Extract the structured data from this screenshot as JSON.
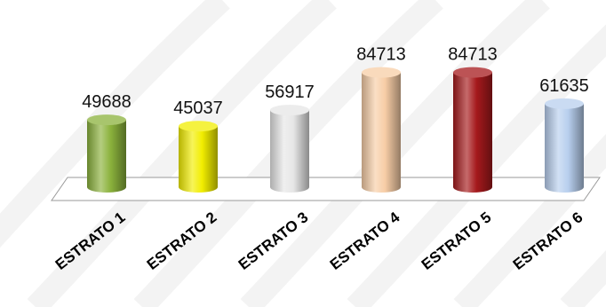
{
  "chart_data": {
    "type": "bar",
    "style": "3d-cylinder",
    "categories": [
      "ESTRATO 1",
      "ESTRATO 2",
      "ESTRATO 3",
      "ESTRATO 4",
      "ESTRATO 5",
      "ESTRATO 6"
    ],
    "values": [
      49688,
      45037,
      56917,
      84713,
      84713,
      61635
    ],
    "colors": [
      "#8bb23c",
      "#f2ee00",
      "#e6e6e6",
      "#f7cda6",
      "#a5191c",
      "#b8cfee"
    ],
    "ylim": [
      0,
      110000
    ],
    "grid": false,
    "legend": "none"
  }
}
